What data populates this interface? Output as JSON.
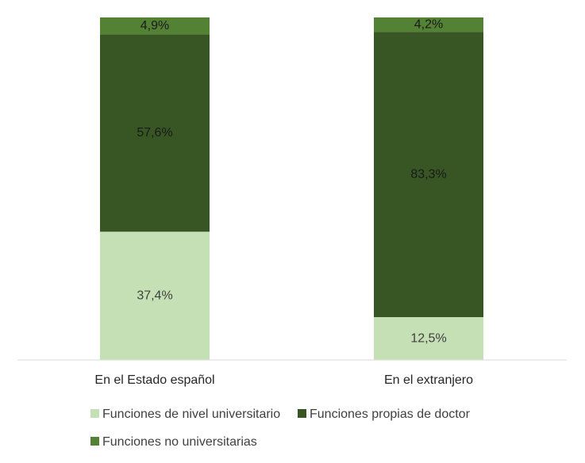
{
  "chart_data": {
    "type": "bar",
    "stacked": true,
    "normalized": true,
    "categories": [
      "En el Estado español",
      "En el extranjero"
    ],
    "series": [
      {
        "name": "Funciones de nivel universitario",
        "values": [
          37.4,
          12.5
        ],
        "labels": [
          "37,4%",
          "12,5%"
        ],
        "color": "#c5e0b4",
        "label_color": "#404040"
      },
      {
        "name": "Funciones propias de doctor",
        "values": [
          57.6,
          83.3
        ],
        "labels": [
          "57,6%",
          "83,3%"
        ],
        "color": "#375623",
        "label_color": "#1a1a1a"
      },
      {
        "name": "Funciones no universitarias",
        "values": [
          4.9,
          4.2
        ],
        "labels": [
          "4,9%",
          "4,2%"
        ],
        "color": "#548235",
        "label_color": "#1a1a1a"
      }
    ],
    "ylim": [
      0,
      100
    ],
    "grid": false,
    "legend_position": "bottom",
    "axis_color": "#d9d9d9"
  }
}
